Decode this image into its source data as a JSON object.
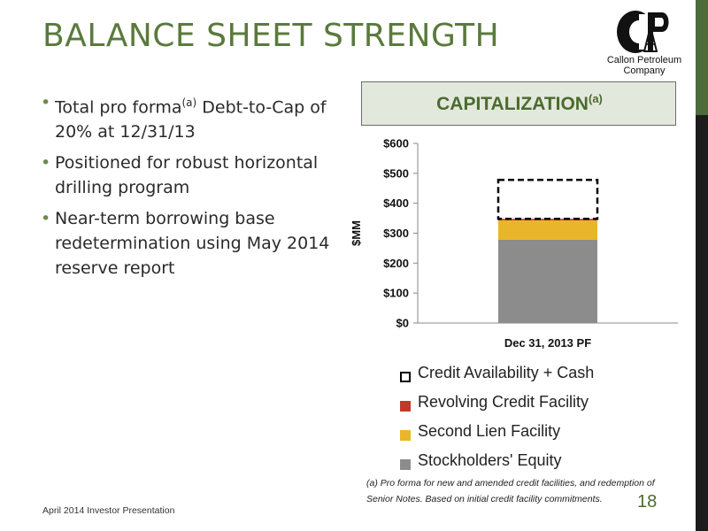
{
  "slide": {
    "title": "BALANCE SHEET STRENGTH",
    "logo_text_line1": "Callon Petroleum",
    "logo_text_line2": "Company",
    "bullets": [
      {
        "pre": "Total pro forma",
        "sup": "(a)",
        "post": " Debt-to-Cap of 20% at 12/31/13"
      },
      {
        "text": "Positioned for robust horizontal drilling program"
      },
      {
        "text": "Near-term borrowing base redetermination using May 2014 reserve report"
      }
    ],
    "capitalization_title": "CAPITALIZATION",
    "capitalization_sup": "(a)",
    "footnote": "(a) Pro forma for new and amended credit facilities, and redemption of Senior Notes. Based on initial credit facility commitments.",
    "footer": "April 2014 Investor Presentation",
    "page_number": "18",
    "colors": {
      "title": "#5a7a3c",
      "stockholders_equity": "#8c8c8c",
      "second_lien": "#e9b52b",
      "revolving_credit": "#c0392b",
      "credit_availability_border": "#000000"
    }
  },
  "chart_data": {
    "type": "bar",
    "stacked": true,
    "categories": [
      "Dec 31, 2013 PF"
    ],
    "series": [
      {
        "name": "Stockholders' Equity",
        "values": [
          278
        ],
        "color": "#8c8c8c"
      },
      {
        "name": "Second Lien Facility",
        "values": [
          65
        ],
        "color": "#e9b52b"
      },
      {
        "name": "Revolving Credit Facility",
        "values": [
          5
        ],
        "color": "#c0392b"
      },
      {
        "name": "Credit Availability + Cash",
        "values": [
          130
        ],
        "style": "dashed-outline"
      }
    ],
    "ylabel": "$MM",
    "ylim": [
      0,
      600
    ],
    "yticks": [
      0,
      100,
      200,
      300,
      400,
      500,
      600
    ],
    "ytick_labels": [
      "$0",
      "$100",
      "$200",
      "$300",
      "$400",
      "$500",
      "$600"
    ],
    "legend_order": [
      "Credit Availability + Cash",
      "Revolving Credit Facility",
      "Second Lien Facility",
      "Stockholders' Equity"
    ],
    "legend_position": "bottom",
    "grid": false
  }
}
